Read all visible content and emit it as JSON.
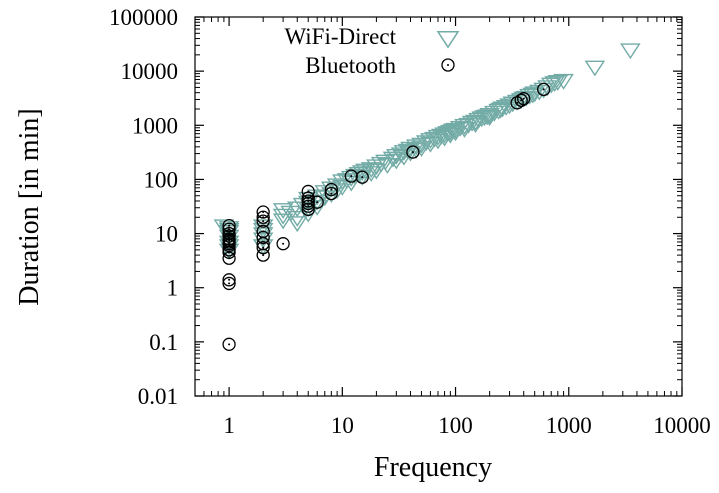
{
  "chart_data": {
    "type": "scatter",
    "xlabel": "Frequency",
    "ylabel": "Duration [in min]",
    "xscale": "log",
    "yscale": "log",
    "xlim": [
      0.5,
      10000
    ],
    "ylim": [
      0.01,
      100000
    ],
    "xticks": [
      1,
      10,
      100,
      1000,
      10000
    ],
    "xtick_labels": [
      "1",
      "10",
      "100",
      "1000",
      "10000"
    ],
    "yticks": [
      0.01,
      0.1,
      1,
      10,
      100,
      1000,
      10000,
      100000
    ],
    "ytick_labels": [
      "0.01",
      "0.1",
      "1",
      "10",
      "100",
      "1000",
      "10000",
      "100000"
    ],
    "grid": false,
    "legend_position": "top-center",
    "series": [
      {
        "name": "WiFi-Direct",
        "marker": "triangle-down-open",
        "color": "#73ABA6",
        "points": [
          [
            0.9,
            14
          ],
          [
            1,
            12
          ],
          [
            1,
            9
          ],
          [
            1,
            7
          ],
          [
            1,
            6
          ],
          [
            1,
            5
          ],
          [
            1,
            11
          ],
          [
            1,
            13
          ],
          [
            2,
            14
          ],
          [
            2,
            12
          ],
          [
            2,
            10
          ],
          [
            2,
            8
          ],
          [
            2,
            6
          ],
          [
            3,
            28
          ],
          [
            3,
            22
          ],
          [
            3,
            18
          ],
          [
            3.5,
            25
          ],
          [
            4,
            30
          ],
          [
            4,
            20
          ],
          [
            4,
            16
          ],
          [
            4.5,
            35
          ],
          [
            5,
            45
          ],
          [
            5,
            38
          ],
          [
            5,
            30
          ],
          [
            5,
            24
          ],
          [
            6,
            50
          ],
          [
            6,
            40
          ],
          [
            6,
            32
          ],
          [
            7,
            60
          ],
          [
            7,
            48
          ],
          [
            8,
            70
          ],
          [
            8,
            55
          ],
          [
            9,
            80
          ],
          [
            9,
            65
          ],
          [
            10,
            95
          ],
          [
            10,
            75
          ],
          [
            11,
            100
          ],
          [
            12,
            110
          ],
          [
            12,
            90
          ],
          [
            13,
            120
          ],
          [
            14,
            130
          ],
          [
            15,
            140
          ],
          [
            15,
            115
          ],
          [
            16,
            150
          ],
          [
            18,
            160
          ],
          [
            18,
            135
          ],
          [
            20,
            180
          ],
          [
            20,
            150
          ],
          [
            22,
            200
          ],
          [
            24,
            220
          ],
          [
            25,
            190
          ],
          [
            28,
            250
          ],
          [
            30,
            280
          ],
          [
            30,
            230
          ],
          [
            33,
            300
          ],
          [
            35,
            330
          ],
          [
            35,
            270
          ],
          [
            38,
            350
          ],
          [
            40,
            380
          ],
          [
            40,
            320
          ],
          [
            45,
            420
          ],
          [
            45,
            360
          ],
          [
            50,
            450
          ],
          [
            50,
            390
          ],
          [
            55,
            500
          ],
          [
            60,
            550
          ],
          [
            60,
            470
          ],
          [
            65,
            580
          ],
          [
            70,
            630
          ],
          [
            70,
            540
          ],
          [
            75,
            660
          ],
          [
            80,
            700
          ],
          [
            80,
            610
          ],
          [
            85,
            740
          ],
          [
            90,
            780
          ],
          [
            90,
            690
          ],
          [
            95,
            820
          ],
          [
            100,
            850
          ],
          [
            100,
            760
          ],
          [
            110,
            920
          ],
          [
            120,
            1000
          ],
          [
            120,
            880
          ],
          [
            130,
            1050
          ],
          [
            140,
            1150
          ],
          [
            150,
            1200
          ],
          [
            150,
            1080
          ],
          [
            160,
            1300
          ],
          [
            170,
            1380
          ],
          [
            180,
            1450
          ],
          [
            190,
            1500
          ],
          [
            200,
            1600
          ],
          [
            200,
            1450
          ],
          [
            220,
            1750
          ],
          [
            240,
            1900
          ],
          [
            250,
            2000
          ],
          [
            260,
            2100
          ],
          [
            280,
            2250
          ],
          [
            300,
            2400
          ],
          [
            320,
            2600
          ],
          [
            350,
            2800
          ],
          [
            380,
            3000
          ],
          [
            400,
            3200
          ],
          [
            420,
            3300
          ],
          [
            450,
            3600
          ],
          [
            480,
            3800
          ],
          [
            500,
            4000
          ],
          [
            550,
            4300
          ],
          [
            600,
            4700
          ],
          [
            650,
            5200
          ],
          [
            700,
            5800
          ],
          [
            750,
            6200
          ],
          [
            800,
            6500
          ],
          [
            900,
            6800
          ],
          [
            1700,
            12000
          ],
          [
            3500,
            25000
          ]
        ]
      },
      {
        "name": "Bluetooth",
        "marker": "circle-open-dot",
        "color": "#000000",
        "points": [
          [
            1,
            0.09
          ],
          [
            1,
            1.2
          ],
          [
            1,
            1.4
          ],
          [
            1,
            3.5
          ],
          [
            1,
            4.5
          ],
          [
            1,
            5
          ],
          [
            1,
            6
          ],
          [
            1,
            6.5
          ],
          [
            1,
            7
          ],
          [
            1,
            7.5
          ],
          [
            1,
            8
          ],
          [
            1,
            9
          ],
          [
            1,
            10
          ],
          [
            1,
            12
          ],
          [
            1,
            14
          ],
          [
            2,
            4
          ],
          [
            2,
            5.5
          ],
          [
            2,
            6.5
          ],
          [
            2,
            8.5
          ],
          [
            2,
            11
          ],
          [
            2,
            17
          ],
          [
            2,
            20
          ],
          [
            2,
            25
          ],
          [
            3,
            6.5
          ],
          [
            5,
            28
          ],
          [
            5,
            32
          ],
          [
            5,
            36
          ],
          [
            5,
            40
          ],
          [
            5,
            45
          ],
          [
            5,
            60
          ],
          [
            6,
            38
          ],
          [
            8,
            55
          ],
          [
            8,
            65
          ],
          [
            12,
            115
          ],
          [
            15,
            110
          ],
          [
            42,
            320
          ],
          [
            350,
            2600
          ],
          [
            380,
            2900
          ],
          [
            400,
            3100
          ],
          [
            600,
            4600
          ]
        ]
      }
    ]
  }
}
